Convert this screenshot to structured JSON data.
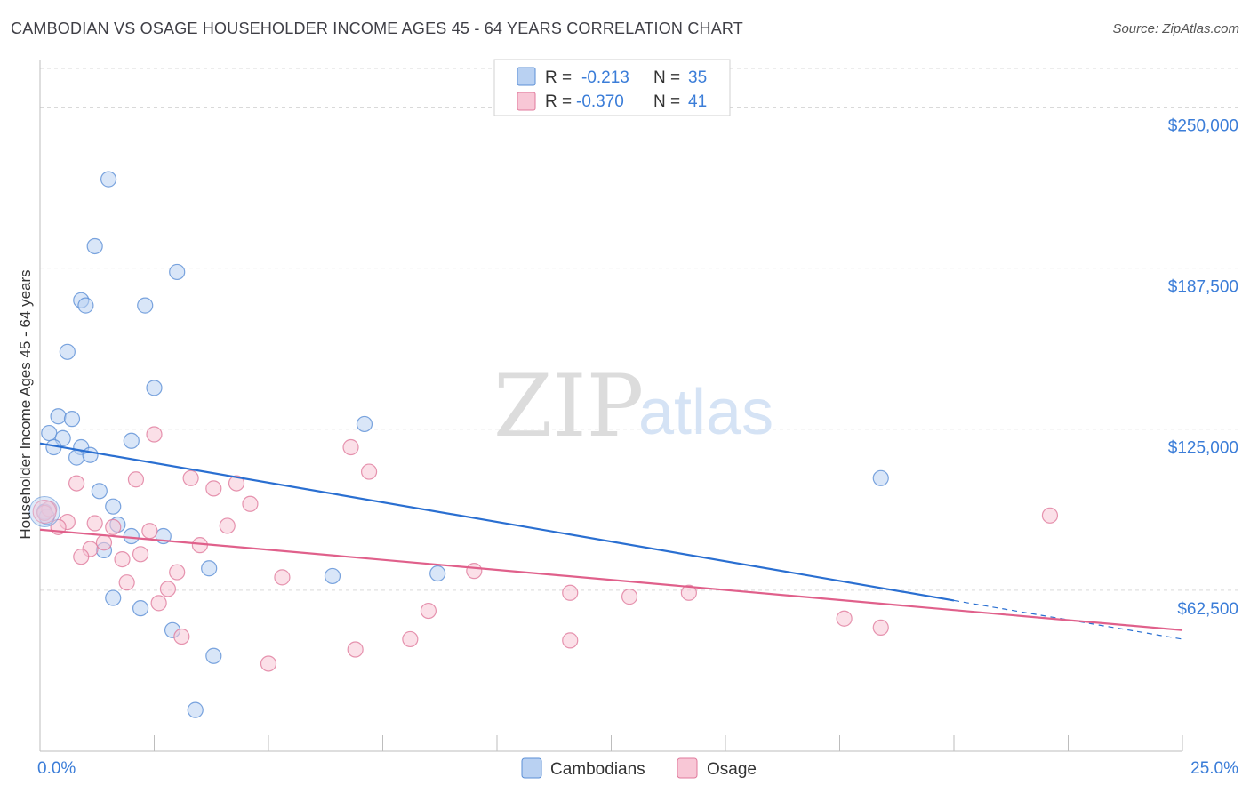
{
  "title": "CAMBODIAN VS OSAGE HOUSEHOLDER INCOME AGES 45 - 64 YEARS CORRELATION CHART",
  "source": "Source: ZipAtlas.com",
  "watermark": {
    "zip": "ZIP",
    "atlas": "atlas"
  },
  "colors": {
    "cambodian_fill": "#b9d1f2",
    "cambodian_stroke": "#5b8fd6",
    "cambodian_line": "#2a6fd1",
    "osage_fill": "#f8c7d6",
    "osage_stroke": "#e07a9c",
    "osage_line": "#e0608b",
    "tick_text": "#3b7dd8",
    "grid": "#d9d9d9"
  },
  "legend_top": [
    {
      "r_label": "R =",
      "r_value": "-0.213",
      "n_label": "N =",
      "n_value": "35"
    },
    {
      "r_label": "R =",
      "r_value": "-0.370",
      "n_label": "N =",
      "n_value": "41"
    }
  ],
  "legend_bottom": [
    "Cambodians",
    "Osage"
  ],
  "chart_data": {
    "type": "scatter",
    "title": "CAMBODIAN VS OSAGE HOUSEHOLDER INCOME AGES 45 - 64 YEARS CORRELATION CHART",
    "xlabel": "",
    "ylabel": "Householder Income Ages 45 - 64 years",
    "xlim": [
      0,
      25
    ],
    "ylim": [
      0,
      265000
    ],
    "x_tick_labels": [
      "0.0%",
      "25.0%"
    ],
    "y_ticks": [
      62500,
      125000,
      187500,
      250000
    ],
    "y_tick_labels": [
      "$62,500",
      "$125,000",
      "$187,500",
      "$250,000"
    ],
    "grid": true,
    "series": [
      {
        "name": "Cambodians",
        "r": -0.213,
        "n": 35,
        "trend": {
          "x_start": 0,
          "y_start": 119500,
          "x_end": 20,
          "y_end": 58500,
          "x_dash_end": 25,
          "y_dash_end": 43500
        },
        "points": [
          [
            1.5,
            222000
          ],
          [
            1.2,
            196000
          ],
          [
            3.0,
            186000
          ],
          [
            0.9,
            175000
          ],
          [
            1.0,
            173000
          ],
          [
            2.3,
            173000
          ],
          [
            0.6,
            155000
          ],
          [
            2.5,
            141000
          ],
          [
            0.4,
            130000
          ],
          [
            0.7,
            129000
          ],
          [
            7.1,
            127000
          ],
          [
            0.2,
            123500
          ],
          [
            0.5,
            121500
          ],
          [
            2.0,
            120500
          ],
          [
            0.3,
            118000
          ],
          [
            0.9,
            118000
          ],
          [
            0.8,
            114000
          ],
          [
            1.1,
            115000
          ],
          [
            18.4,
            106000
          ],
          [
            1.3,
            101000
          ],
          [
            1.6,
            95000
          ],
          [
            0.1,
            93000
          ],
          [
            1.7,
            88000
          ],
          [
            2.0,
            83500
          ],
          [
            2.7,
            83500
          ],
          [
            1.4,
            78000
          ],
          [
            3.7,
            71000
          ],
          [
            6.4,
            68000
          ],
          [
            8.7,
            69000
          ],
          [
            1.6,
            59500
          ],
          [
            2.2,
            55500
          ],
          [
            2.9,
            47000
          ],
          [
            3.8,
            37000
          ],
          [
            3.4,
            16000
          ],
          [
            0.15,
            91000
          ]
        ]
      },
      {
        "name": "Osage",
        "r": -0.37,
        "n": 41,
        "trend": {
          "x_start": 0,
          "y_start": 86000,
          "x_end": 25,
          "y_end": 47000
        },
        "points": [
          [
            2.5,
            123000
          ],
          [
            6.8,
            118000
          ],
          [
            7.2,
            108500
          ],
          [
            2.1,
            105500
          ],
          [
            3.3,
            106000
          ],
          [
            4.3,
            104000
          ],
          [
            0.8,
            104000
          ],
          [
            3.8,
            102000
          ],
          [
            4.6,
            96000
          ],
          [
            0.2,
            94000
          ],
          [
            0.1,
            92500
          ],
          [
            0.6,
            89000
          ],
          [
            1.2,
            88500
          ],
          [
            1.6,
            87000
          ],
          [
            4.1,
            87500
          ],
          [
            0.4,
            87000
          ],
          [
            2.4,
            85500
          ],
          [
            1.4,
            81000
          ],
          [
            3.5,
            80000
          ],
          [
            1.1,
            78500
          ],
          [
            2.2,
            76500
          ],
          [
            0.9,
            75500
          ],
          [
            1.8,
            74500
          ],
          [
            3.0,
            69500
          ],
          [
            9.5,
            70000
          ],
          [
            5.3,
            67500
          ],
          [
            1.9,
            65500
          ],
          [
            2.8,
            63000
          ],
          [
            11.6,
            61500
          ],
          [
            12.9,
            60000
          ],
          [
            14.2,
            61500
          ],
          [
            2.6,
            57500
          ],
          [
            8.5,
            54500
          ],
          [
            17.6,
            51500
          ],
          [
            18.4,
            48000
          ],
          [
            3.1,
            44500
          ],
          [
            8.1,
            43500
          ],
          [
            11.6,
            43000
          ],
          [
            6.9,
            39500
          ],
          [
            5.0,
            34000
          ],
          [
            22.1,
            91500
          ]
        ]
      }
    ]
  }
}
